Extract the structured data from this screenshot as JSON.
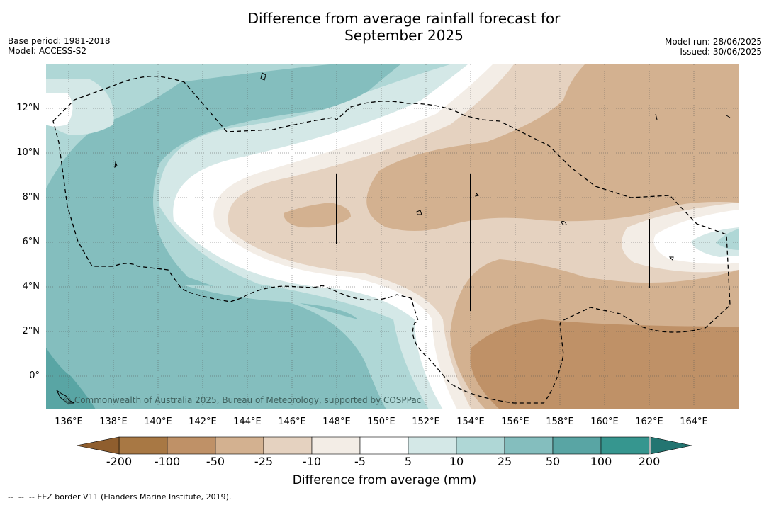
{
  "title_line1": "Difference from average rainfall forecast for",
  "title_line2": "September 2025",
  "meta": {
    "base_period": "Base period: 1981-2018",
    "model": "Model: ACCESS-S2",
    "model_run": "Model run: 28/06/2025",
    "issued": "Issued: 30/06/2025"
  },
  "map": {
    "copyright": "© Commonwealth of Australia 2025, Bureau of Meteorology, supported by COSPPac",
    "lat_labels": [
      "12°N",
      "10°N",
      "8°N",
      "6°N",
      "4°N",
      "2°N",
      "0°"
    ],
    "lon_labels": [
      "136°E",
      "138°E",
      "140°E",
      "142°E",
      "144°E",
      "146°E",
      "148°E",
      "150°E",
      "152°E",
      "154°E",
      "156°E",
      "158°E",
      "160°E",
      "162°E",
      "164°E"
    ],
    "lon_range": [
      135,
      166
    ],
    "lat_range": [
      -1.5,
      14
    ],
    "grid": true
  },
  "colorbar": {
    "label": "Difference from average (mm)",
    "ticks": [
      "-200",
      "-100",
      "-50",
      "-25",
      "-10",
      "-5",
      "5",
      "10",
      "25",
      "50",
      "100",
      "200"
    ],
    "colors": [
      "#a87844",
      "#bf9167",
      "#d3b190",
      "#e5d2c0",
      "#f3ede6",
      "#ffffff",
      "#d4e8e7",
      "#afd7d6",
      "#84bebe",
      "#59a5a4",
      "#36968f"
    ],
    "extend_low_color": "#8f5e2e",
    "extend_high_color": "#237571"
  },
  "footer": "--  --  -- EEZ border V11 (Flanders Marine Institute, 2019)."
}
